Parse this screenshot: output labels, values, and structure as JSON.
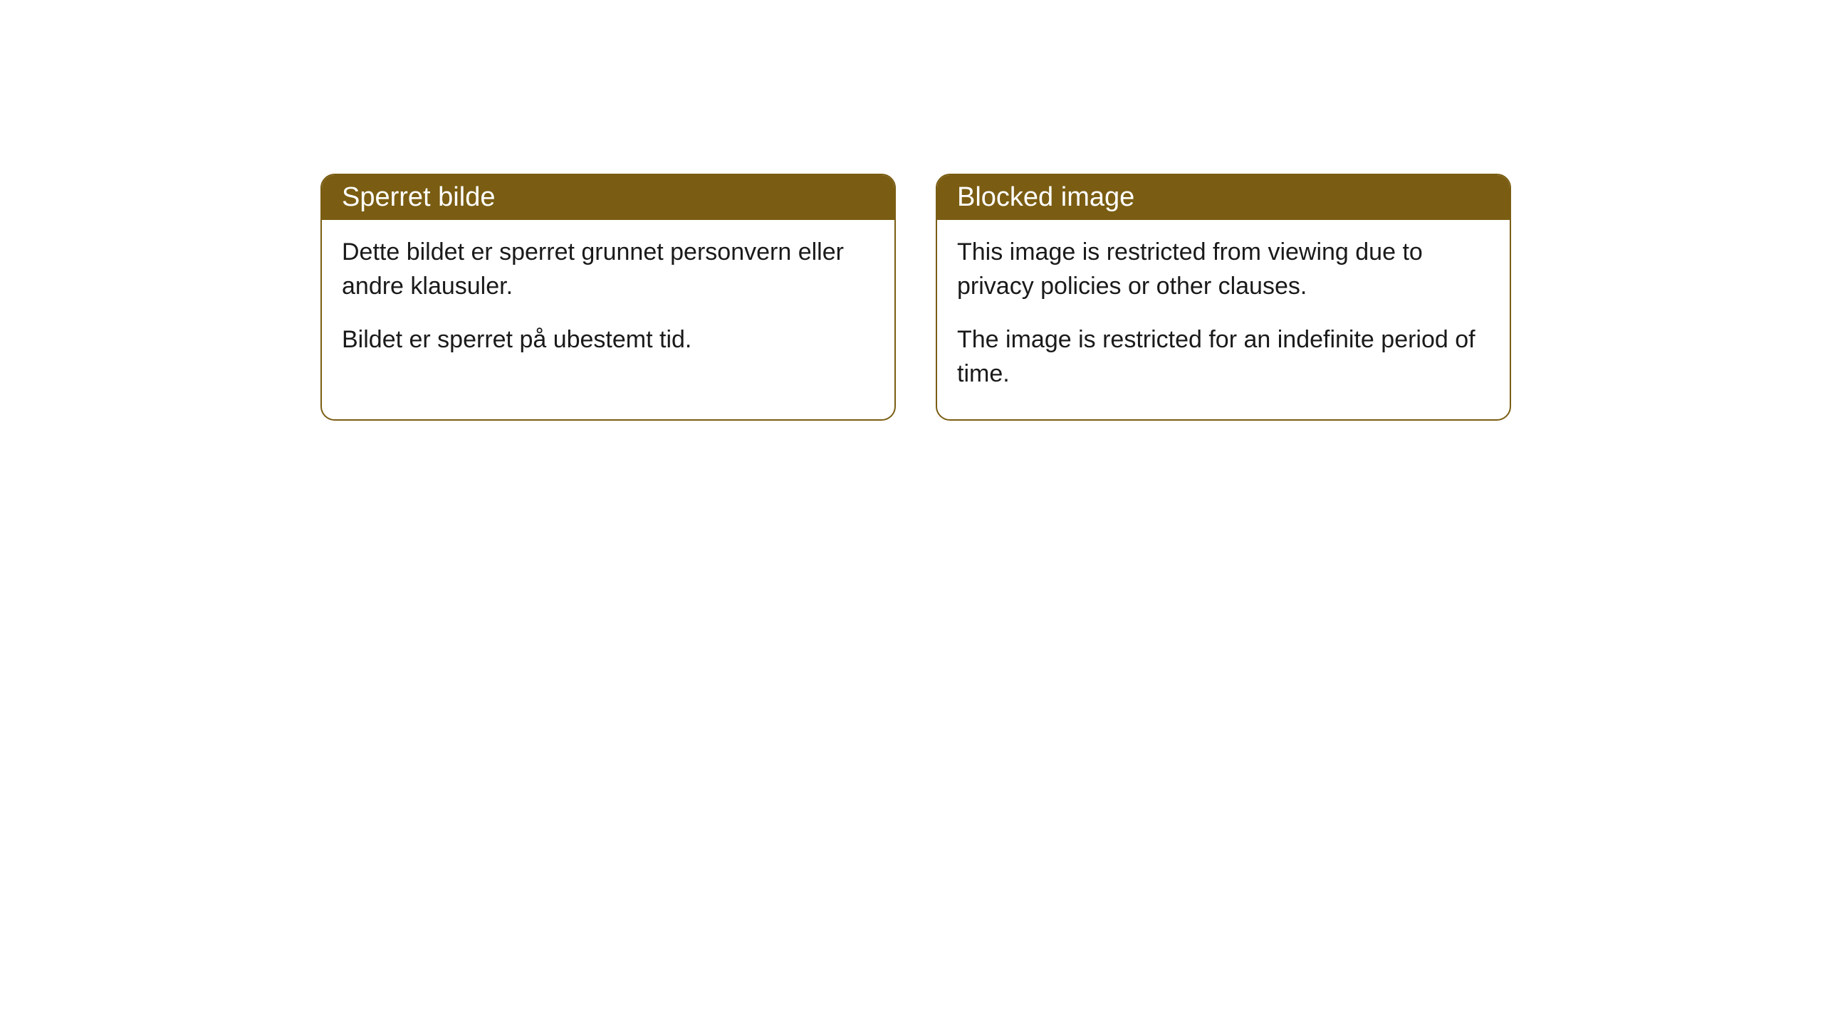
{
  "cards": [
    {
      "title": "Sperret bilde",
      "paragraph1": "Dette bildet er sperret grunnet personvern eller andre klausuler.",
      "paragraph2": "Bildet er sperret på ubestemt tid."
    },
    {
      "title": "Blocked image",
      "paragraph1": "This image is restricted from viewing due to privacy policies or other clauses.",
      "paragraph2": "The image is restricted for an indefinite period of time."
    }
  ],
  "style": {
    "header_bg_color": "#7a5d13",
    "header_text_color": "#ffffff",
    "border_color": "#7a5d13",
    "body_bg_color": "#ffffff",
    "body_text_color": "#1a1a1a",
    "border_radius": 20,
    "header_fontsize": 38,
    "body_fontsize": 34
  }
}
